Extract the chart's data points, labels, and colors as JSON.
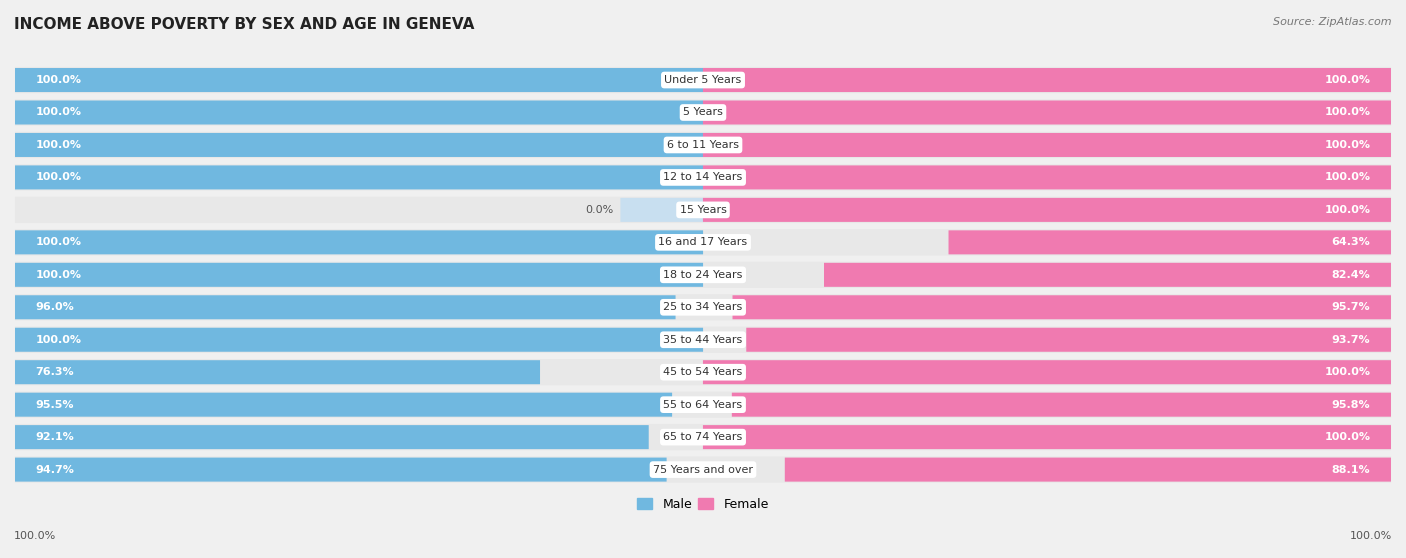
{
  "title": "INCOME ABOVE POVERTY BY SEX AND AGE IN GENEVA",
  "source": "Source: ZipAtlas.com",
  "categories": [
    "Under 5 Years",
    "5 Years",
    "6 to 11 Years",
    "12 to 14 Years",
    "15 Years",
    "16 and 17 Years",
    "18 to 24 Years",
    "25 to 34 Years",
    "35 to 44 Years",
    "45 to 54 Years",
    "55 to 64 Years",
    "65 to 74 Years",
    "75 Years and over"
  ],
  "male_values": [
    100.0,
    100.0,
    100.0,
    100.0,
    0.0,
    100.0,
    100.0,
    96.0,
    100.0,
    76.3,
    95.5,
    92.1,
    94.7
  ],
  "female_values": [
    100.0,
    100.0,
    100.0,
    100.0,
    100.0,
    64.3,
    82.4,
    95.7,
    93.7,
    100.0,
    95.8,
    100.0,
    88.1
  ],
  "male_color": "#70b8e0",
  "female_color": "#f07ab0",
  "male_color_light": "#c8dff0",
  "female_color_light": "#fadadd",
  "row_bg_color": "#e8e8e8",
  "background_color": "#f0f0f0",
  "title_fontsize": 11,
  "label_fontsize": 8,
  "category_fontsize": 8,
  "legend_fontsize": 9
}
